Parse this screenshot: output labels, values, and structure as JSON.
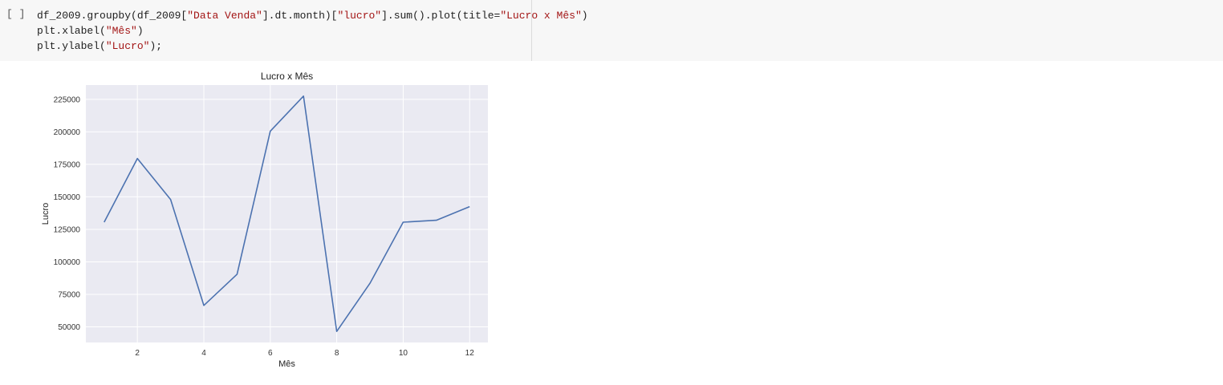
{
  "cell": {
    "run_indicator": "[ ]",
    "code_lines": [
      [
        {
          "t": "df_2009.groupby(df_2009["
        },
        {
          "t": "\"Data Venda\"",
          "s": 1
        },
        {
          "t": "].dt.month)["
        },
        {
          "t": "\"lucro\"",
          "s": 1
        },
        {
          "t": "].sum().plot(title="
        },
        {
          "t": "\"Lucro x Mês\"",
          "s": 1
        },
        {
          "t": ")"
        }
      ],
      [
        {
          "t": "plt.xlabel("
        },
        {
          "t": "\"Mês\"",
          "s": 1
        },
        {
          "t": ")"
        }
      ],
      [
        {
          "t": "plt.ylabel("
        },
        {
          "t": "\"Lucro\"",
          "s": 1
        },
        {
          "t": ");"
        }
      ]
    ]
  },
  "chart_data": {
    "type": "line",
    "title": "Lucro x Mês",
    "xlabel": "Mês",
    "ylabel": "Lucro",
    "x": [
      1,
      2,
      3,
      4,
      5,
      6,
      7,
      8,
      9,
      10,
      11,
      12
    ],
    "series": [
      {
        "values": [
          130500,
          179500,
          148000,
          66500,
          90500,
          200500,
          227500,
          46500,
          83500,
          130500,
          132000,
          142500
        ],
        "color": "#4c72b0"
      }
    ],
    "x_ticks": [
      2,
      4,
      6,
      8,
      10,
      12
    ],
    "y_ticks": [
      50000,
      75000,
      100000,
      125000,
      150000,
      175000,
      200000,
      225000
    ],
    "xlim": [
      0.45,
      12.55
    ],
    "ylim": [
      38000,
      236000
    ],
    "grid": true,
    "style": {
      "background": "#eaeaf2",
      "grid_color": "#ffffff",
      "line_color": "#4c72b0"
    }
  }
}
